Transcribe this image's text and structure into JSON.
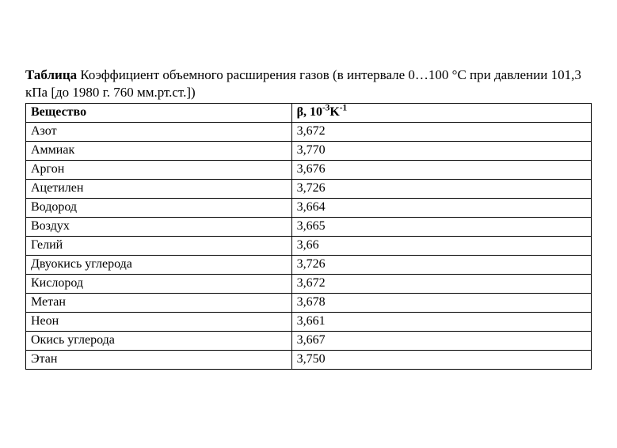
{
  "caption": {
    "label_bold": "Таблица",
    "text_rest": " Коэффициент объемного расширения газов (в интервале 0…100 °С при давлении 101,3 кПа [до 1980 г. 760 мм.рт.ст.])"
  },
  "table": {
    "type": "table",
    "columns": [
      "Вещество",
      "β, 10⁻³K⁻¹"
    ],
    "header_col1": "Вещество",
    "header_col2_html": "β, 10<sup>-3</sup>K<sup>-1</sup>",
    "rows": [
      {
        "substance": "Азот",
        "value": "3,672"
      },
      {
        "substance": "Аммиак",
        "value": "3,770"
      },
      {
        "substance": "Аргон",
        "value": "3,676"
      },
      {
        "substance": "Ацетилен",
        "value": "3,726"
      },
      {
        "substance": "Водород",
        "value": "3,664"
      },
      {
        "substance": "Воздух",
        "value": "3,665"
      },
      {
        "substance": "Гелий",
        "value": "3,66"
      },
      {
        "substance": "Двуокись углерода",
        "value": "3,726"
      },
      {
        "substance": "Кислород",
        "value": "3,672"
      },
      {
        "substance": "Метан",
        "value": "3,678"
      },
      {
        "substance": "Неон",
        "value": "3,661"
      },
      {
        "substance": "Окись углерода",
        "value": "3,667"
      },
      {
        "substance": "Этан",
        "value": "3,750"
      }
    ],
    "col_widths_pct": [
      47,
      53
    ],
    "border_color": "#000000",
    "background_color": "#ffffff",
    "font_family": "Times New Roman",
    "font_size_pt": 12
  }
}
